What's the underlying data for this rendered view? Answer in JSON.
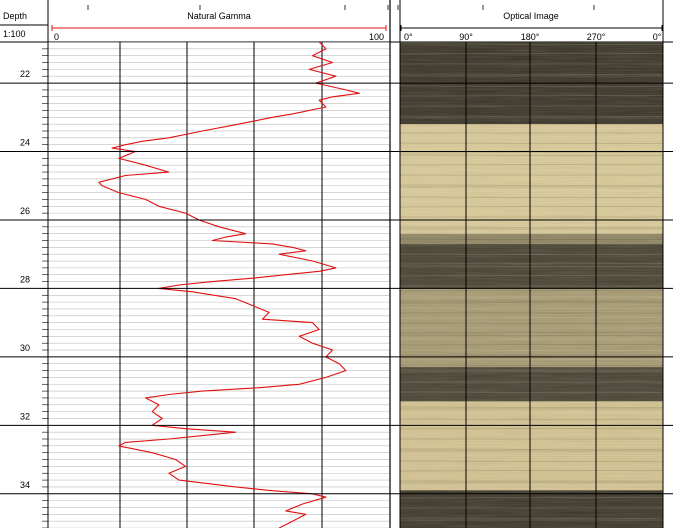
{
  "header": {
    "depth_title": "Depth",
    "scale_label": "1:100"
  },
  "chart_data": {
    "type": "line",
    "title": "Natural Gamma",
    "xlabel": "",
    "ylabel": "Depth",
    "xlim": [
      0,
      100
    ],
    "x_ticks": [
      "0",
      "100"
    ],
    "ylim": [
      20.8,
      35.0
    ],
    "y_ticks": [
      "22",
      "24",
      "26",
      "28",
      "30",
      "32",
      "34"
    ],
    "grid": true,
    "series": [
      {
        "color": "#e01010",
        "points": [
          [
            80,
            20.8
          ],
          [
            82,
            21.0
          ],
          [
            78,
            21.2
          ],
          [
            84,
            21.4
          ],
          [
            77,
            21.6
          ],
          [
            85,
            21.8
          ],
          [
            79,
            22.0
          ],
          [
            88,
            22.2
          ],
          [
            92,
            22.3
          ],
          [
            84,
            22.4
          ],
          [
            80,
            22.5
          ],
          [
            82,
            22.7
          ],
          [
            72,
            22.9
          ],
          [
            66,
            23.0
          ],
          [
            56,
            23.2
          ],
          [
            45,
            23.4
          ],
          [
            35,
            23.6
          ],
          [
            27,
            23.7
          ],
          [
            22,
            23.8
          ],
          [
            18,
            23.9
          ],
          [
            25,
            24.0
          ],
          [
            20,
            24.2
          ],
          [
            28,
            24.4
          ],
          [
            35,
            24.6
          ],
          [
            22,
            24.7
          ],
          [
            14,
            24.9
          ],
          [
            15,
            25.0
          ],
          [
            20,
            25.2
          ],
          [
            28,
            25.4
          ],
          [
            32,
            25.6
          ],
          [
            40,
            25.8
          ],
          [
            44,
            26.0
          ],
          [
            50,
            26.2
          ],
          [
            58,
            26.4
          ],
          [
            52,
            26.5
          ],
          [
            48,
            26.6
          ],
          [
            66,
            26.7
          ],
          [
            72,
            26.8
          ],
          [
            76,
            26.9
          ],
          [
            68,
            27.0
          ],
          [
            78,
            27.2
          ],
          [
            85,
            27.4
          ],
          [
            80,
            27.5
          ],
          [
            70,
            27.6
          ],
          [
            60,
            27.7
          ],
          [
            48,
            27.8
          ],
          [
            38,
            27.9
          ],
          [
            32,
            28.0
          ],
          [
            42,
            28.1
          ],
          [
            55,
            28.3
          ],
          [
            60,
            28.5
          ],
          [
            65,
            28.7
          ],
          [
            63,
            28.9
          ],
          [
            78,
            29.0
          ],
          [
            80,
            29.2
          ],
          [
            74,
            29.4
          ],
          [
            78,
            29.6
          ],
          [
            84,
            29.8
          ],
          [
            82,
            30.0
          ],
          [
            86,
            30.2
          ],
          [
            88,
            30.4
          ],
          [
            82,
            30.6
          ],
          [
            74,
            30.8
          ],
          [
            62,
            30.9
          ],
          [
            45,
            31.0
          ],
          [
            35,
            31.1
          ],
          [
            28,
            31.2
          ],
          [
            32,
            31.4
          ],
          [
            30,
            31.6
          ],
          [
            33,
            31.8
          ],
          [
            30,
            32.0
          ],
          [
            40,
            32.1
          ],
          [
            55,
            32.2
          ],
          [
            45,
            32.3
          ],
          [
            35,
            32.4
          ],
          [
            22,
            32.5
          ],
          [
            20,
            32.6
          ],
          [
            30,
            32.8
          ],
          [
            37,
            33.0
          ],
          [
            40,
            33.2
          ],
          [
            35,
            33.4
          ],
          [
            38,
            33.6
          ],
          [
            55,
            33.8
          ],
          [
            65,
            33.9
          ],
          [
            78,
            34.0
          ],
          [
            82,
            34.1
          ],
          [
            75,
            34.3
          ],
          [
            70,
            34.5
          ],
          [
            76,
            34.6
          ],
          [
            72,
            34.8
          ],
          [
            68,
            35.0
          ]
        ]
      }
    ],
    "image_track": {
      "title": "Optical Image",
      "ticks": [
        "0°",
        "90°",
        "180°",
        "270°",
        "0°"
      ],
      "bands": [
        {
          "top": 20.8,
          "bottom": 23.2,
          "tone": "#3b3528"
        },
        {
          "top": 23.2,
          "bottom": 26.4,
          "tone": "#d9c997"
        },
        {
          "top": 26.4,
          "bottom": 26.7,
          "tone": "#8f8462"
        },
        {
          "top": 26.7,
          "bottom": 28.0,
          "tone": "#4a4332"
        },
        {
          "top": 28.0,
          "bottom": 30.3,
          "tone": "#a79a72"
        },
        {
          "top": 30.3,
          "bottom": 31.3,
          "tone": "#4b4434"
        },
        {
          "top": 31.3,
          "bottom": 33.9,
          "tone": "#d3c290"
        },
        {
          "top": 33.9,
          "bottom": 35.0,
          "tone": "#3e3829"
        }
      ]
    }
  },
  "colors": {
    "curve": "#e01010",
    "grid_major": "#000000",
    "grid_minor": "#bdbdbd",
    "scale_line": "#e01010"
  }
}
